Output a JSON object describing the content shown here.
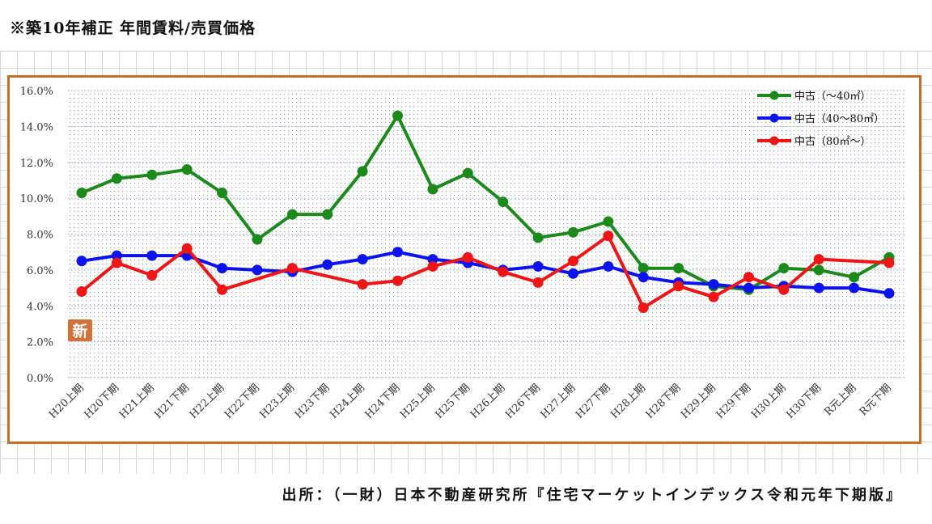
{
  "header": {
    "title": "※築10年補正 年間賃料/売買価格"
  },
  "footer": {
    "source": "出所：（一財）日本不動産研究所『住宅マーケットインデックス令和元年下期版』"
  },
  "badge": {
    "label": "新"
  },
  "chart_data": {
    "type": "line",
    "title": "",
    "xlabel": "",
    "ylabel": "",
    "ylim": [
      0,
      16
    ],
    "y_ticks": [
      "0.0%",
      "2.0%",
      "4.0%",
      "6.0%",
      "8.0%",
      "10.0%",
      "12.0%",
      "14.0%",
      "16.0%"
    ],
    "grid": true,
    "legend_position": "top-right",
    "categories": [
      "H20上期",
      "H20下期",
      "H21上期",
      "H21下期",
      "H22上期",
      "H22下期",
      "H23上期",
      "H23下期",
      "H24上期",
      "H24下期",
      "H25上期",
      "H25下期",
      "H26上期",
      "H26下期",
      "H27上期",
      "H27下期",
      "H28上期",
      "H28下期",
      "H29上期",
      "H29下期",
      "H30上期",
      "H30下期",
      "R元上期",
      "R元下期"
    ],
    "series": [
      {
        "name": "中古（～40㎡）",
        "color": "#1a8a1a",
        "values": [
          10.3,
          11.1,
          11.3,
          11.6,
          10.3,
          7.7,
          9.1,
          9.1,
          11.5,
          14.6,
          10.5,
          11.4,
          9.8,
          7.8,
          8.1,
          8.7,
          6.1,
          6.1,
          5.1,
          4.9,
          6.1,
          6.0,
          5.6,
          6.7
        ]
      },
      {
        "name": "中古（40～80㎡）",
        "color": "#0b12f0",
        "values": [
          6.5,
          6.8,
          6.8,
          6.8,
          6.1,
          6.0,
          5.9,
          6.3,
          6.6,
          7.0,
          6.6,
          6.4,
          6.0,
          6.2,
          5.8,
          6.2,
          5.6,
          5.3,
          5.2,
          5.0,
          5.1,
          5.0,
          5.0,
          4.7
        ]
      },
      {
        "name": "中古（80㎡～）",
        "color": "#f01414",
        "values": [
          4.8,
          6.4,
          5.7,
          7.2,
          4.9,
          null,
          6.1,
          null,
          5.2,
          5.4,
          6.2,
          6.7,
          5.9,
          5.3,
          6.5,
          7.9,
          3.9,
          5.1,
          4.5,
          5.6,
          4.9,
          6.6,
          null,
          6.4
        ]
      }
    ]
  }
}
